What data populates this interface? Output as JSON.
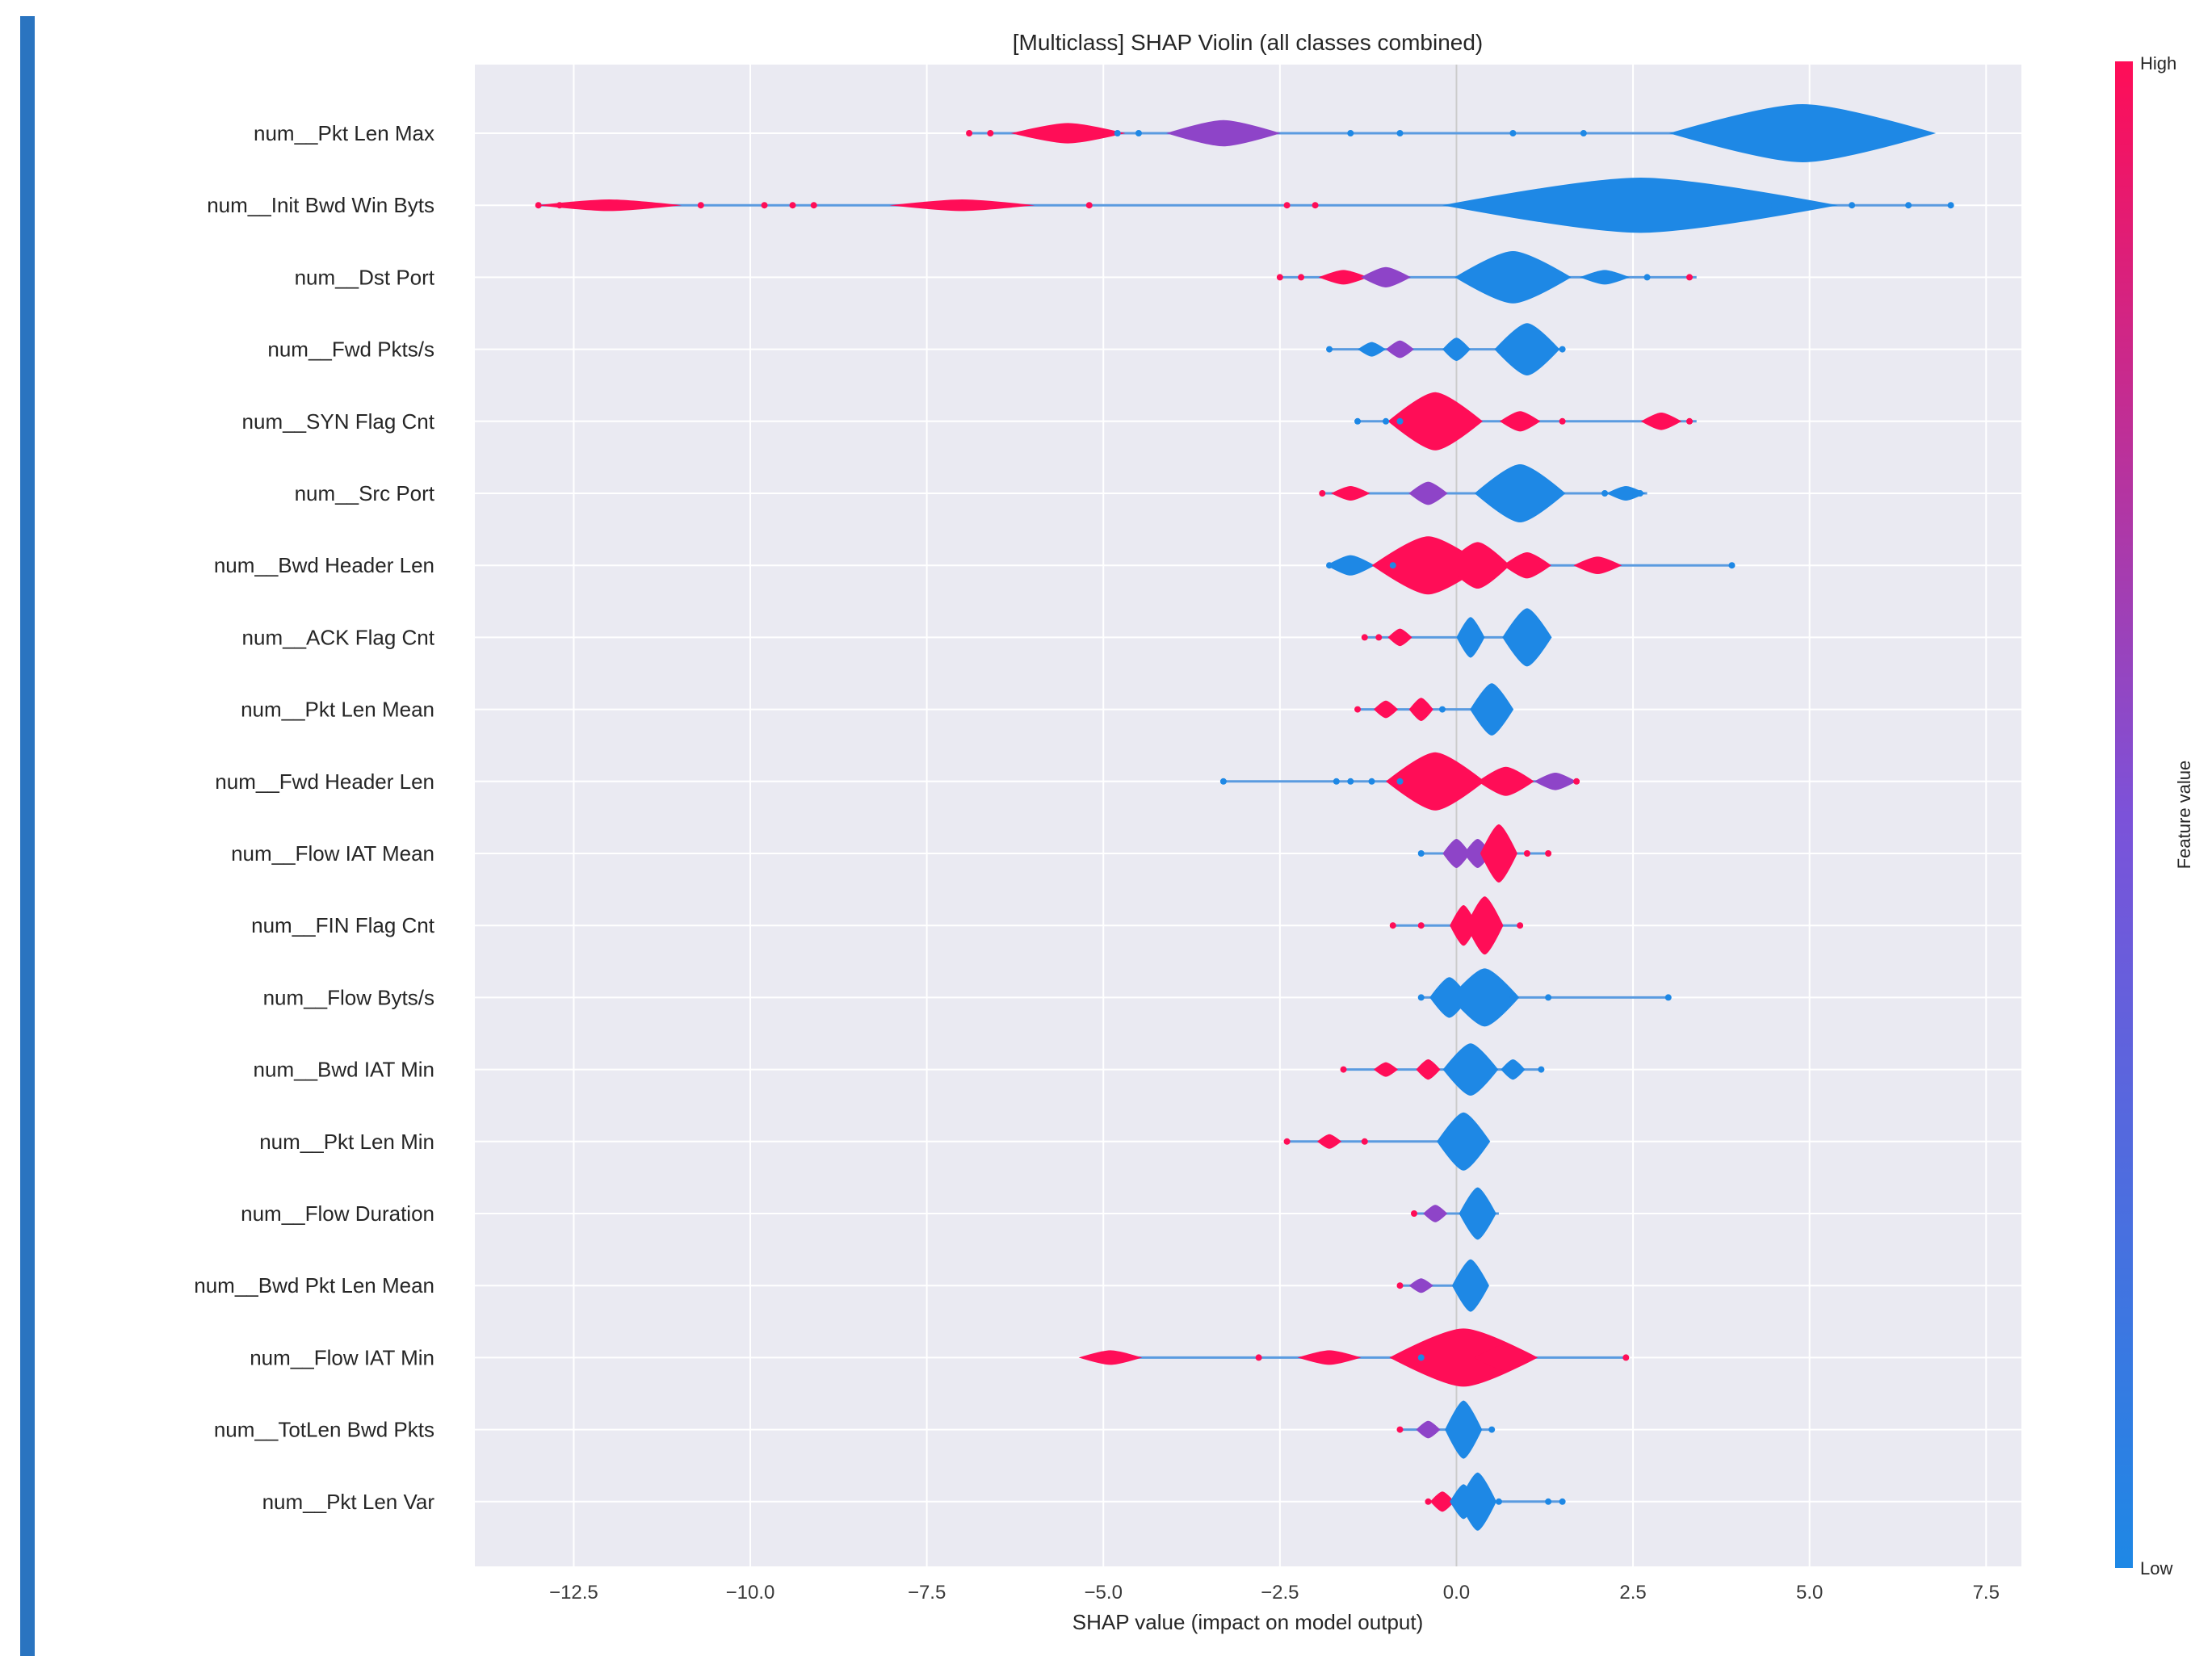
{
  "accent_color": "#2A74C0",
  "chart_data": {
    "type": "violin",
    "title": "[Multiclass] SHAP Violin (all classes combined)",
    "xlabel": "SHAP value (impact on model output)",
    "ylabel": "",
    "xlim": [
      -13.9,
      8.0
    ],
    "xticks": [
      -12.5,
      -10.0,
      -7.5,
      -5.0,
      -2.5,
      0.0,
      2.5,
      5.0,
      7.5
    ],
    "xtick_labels": [
      "−12.5",
      "−10.0",
      "−7.5",
      "−5.0",
      "−2.5",
      "0.0",
      "2.5",
      "5.0",
      "7.5"
    ],
    "colorbar": {
      "label": "Feature value",
      "high": "High",
      "low": "Low",
      "low_color": "#1E88E5",
      "high_color": "#FF0D57"
    },
    "features": [
      {
        "name": "num__Pkt Len Max",
        "min": -6.9,
        "max": 6.6,
        "bodies": [
          [
            -5.5,
            0.35,
            "high"
          ],
          [
            -3.3,
            0.45,
            "mid"
          ],
          [
            4.9,
            1.0,
            "low"
          ]
        ],
        "dots": [
          [
            -6.9,
            "high"
          ],
          [
            -6.6,
            "high"
          ],
          [
            -4.8,
            "low"
          ],
          [
            -4.5,
            "low"
          ],
          [
            -1.5,
            "low"
          ],
          [
            -0.8,
            "low"
          ],
          [
            0.8,
            "low"
          ],
          [
            1.8,
            "low"
          ]
        ]
      },
      {
        "name": "num__Init Bwd Win Byts",
        "min": -13.0,
        "max": 7.0,
        "bodies": [
          [
            -12.0,
            0.2,
            "high"
          ],
          [
            -7.0,
            0.2,
            "high"
          ],
          [
            2.6,
            0.95,
            "low"
          ]
        ],
        "dots": [
          [
            -13.0,
            "high"
          ],
          [
            -12.7,
            "high"
          ],
          [
            -10.7,
            "high"
          ],
          [
            -9.8,
            "high"
          ],
          [
            -9.4,
            "high"
          ],
          [
            -9.1,
            "high"
          ],
          [
            -5.2,
            "high"
          ],
          [
            -2.4,
            "high"
          ],
          [
            -2.0,
            "high"
          ],
          [
            4.5,
            "low"
          ],
          [
            5.6,
            "low"
          ],
          [
            6.4,
            "low"
          ],
          [
            7.0,
            "low"
          ]
        ]
      },
      {
        "name": "num__Dst Port",
        "min": -2.5,
        "max": 3.4,
        "bodies": [
          [
            -1.6,
            0.25,
            "high"
          ],
          [
            -1.0,
            0.35,
            "mid"
          ],
          [
            0.8,
            0.9,
            "low"
          ],
          [
            2.1,
            0.25,
            "low"
          ]
        ],
        "dots": [
          [
            -2.5,
            "high"
          ],
          [
            -2.2,
            "high"
          ],
          [
            2.7,
            "low"
          ],
          [
            3.3,
            "high"
          ]
        ]
      },
      {
        "name": "num__Fwd Pkts/s",
        "min": -1.8,
        "max": 1.5,
        "bodies": [
          [
            -1.2,
            0.25,
            "low"
          ],
          [
            -0.8,
            0.3,
            "mid"
          ],
          [
            0.0,
            0.4,
            "low"
          ],
          [
            1.0,
            0.9,
            "low"
          ]
        ],
        "dots": [
          [
            -1.8,
            "low"
          ],
          [
            1.5,
            "low"
          ]
        ]
      },
      {
        "name": "num__SYN Flag Cnt",
        "min": -1.4,
        "max": 3.4,
        "bodies": [
          [
            -0.3,
            1.0,
            "high"
          ],
          [
            0.9,
            0.35,
            "high"
          ],
          [
            2.9,
            0.3,
            "high"
          ]
        ],
        "dots": [
          [
            -1.4,
            "low"
          ],
          [
            -1.0,
            "low"
          ],
          [
            -0.8,
            "low"
          ],
          [
            1.5,
            "high"
          ],
          [
            3.3,
            "high"
          ]
        ]
      },
      {
        "name": "num__Src Port",
        "min": -1.9,
        "max": 2.7,
        "bodies": [
          [
            -1.5,
            0.25,
            "high"
          ],
          [
            -0.4,
            0.4,
            "mid"
          ],
          [
            0.9,
            1.0,
            "low"
          ],
          [
            2.4,
            0.25,
            "low"
          ]
        ],
        "dots": [
          [
            -1.9,
            "high"
          ],
          [
            2.1,
            "low"
          ],
          [
            2.6,
            "low"
          ]
        ]
      },
      {
        "name": "num__Bwd Header Len",
        "min": -1.8,
        "max": 3.9,
        "bodies": [
          [
            -1.5,
            0.35,
            "low"
          ],
          [
            -0.4,
            1.0,
            "high"
          ],
          [
            0.3,
            0.8,
            "high"
          ],
          [
            1.0,
            0.45,
            "high"
          ],
          [
            2.0,
            0.3,
            "high"
          ]
        ],
        "dots": [
          [
            -1.8,
            "low"
          ],
          [
            -0.9,
            "low"
          ],
          [
            3.9,
            "low"
          ]
        ]
      },
      {
        "name": "num__ACK Flag Cnt",
        "min": -1.3,
        "max": 1.2,
        "bodies": [
          [
            -0.8,
            0.3,
            "high"
          ],
          [
            0.2,
            0.7,
            "low"
          ],
          [
            1.0,
            1.0,
            "low"
          ]
        ],
        "dots": [
          [
            -1.3,
            "high"
          ],
          [
            -1.1,
            "high"
          ]
        ]
      },
      {
        "name": "num__Pkt Len Mean",
        "min": -1.4,
        "max": 0.8,
        "bodies": [
          [
            -1.0,
            0.3,
            "high"
          ],
          [
            -0.5,
            0.4,
            "high"
          ],
          [
            0.5,
            0.9,
            "low"
          ]
        ],
        "dots": [
          [
            -1.4,
            "high"
          ],
          [
            -0.2,
            "low"
          ]
        ]
      },
      {
        "name": "num__Fwd Header Len",
        "min": -3.3,
        "max": 1.7,
        "bodies": [
          [
            -0.3,
            1.0,
            "high"
          ],
          [
            0.7,
            0.5,
            "high"
          ],
          [
            1.4,
            0.3,
            "mid"
          ]
        ],
        "dots": [
          [
            -3.3,
            "low"
          ],
          [
            -1.7,
            "low"
          ],
          [
            -1.5,
            "low"
          ],
          [
            -1.2,
            "low"
          ],
          [
            -0.8,
            "low"
          ],
          [
            1.7,
            "high"
          ]
        ]
      },
      {
        "name": "num__Flow IAT Mean",
        "min": -0.5,
        "max": 1.3,
        "bodies": [
          [
            0.0,
            0.5,
            "mid"
          ],
          [
            0.3,
            0.5,
            "mid"
          ],
          [
            0.6,
            1.0,
            "high"
          ]
        ],
        "dots": [
          [
            -0.5,
            "low"
          ],
          [
            1.0,
            "high"
          ],
          [
            1.3,
            "high"
          ]
        ]
      },
      {
        "name": "num__FIN Flag Cnt",
        "min": -0.9,
        "max": 0.9,
        "bodies": [
          [
            0.1,
            0.7,
            "high"
          ],
          [
            0.4,
            1.0,
            "high"
          ]
        ],
        "dots": [
          [
            -0.9,
            "high"
          ],
          [
            -0.5,
            "high"
          ],
          [
            0.9,
            "high"
          ]
        ]
      },
      {
        "name": "num__Flow Byts/s",
        "min": -0.5,
        "max": 3.0,
        "bodies": [
          [
            -0.1,
            0.7,
            "low"
          ],
          [
            0.4,
            1.0,
            "low"
          ]
        ],
        "dots": [
          [
            -0.5,
            "low"
          ],
          [
            0.8,
            "low"
          ],
          [
            1.3,
            "low"
          ],
          [
            3.0,
            "low"
          ]
        ]
      },
      {
        "name": "num__Bwd IAT Min",
        "min": -1.6,
        "max": 1.2,
        "bodies": [
          [
            -1.0,
            0.25,
            "high"
          ],
          [
            -0.4,
            0.35,
            "high"
          ],
          [
            0.2,
            0.9,
            "low"
          ],
          [
            0.8,
            0.35,
            "low"
          ]
        ],
        "dots": [
          [
            -1.6,
            "high"
          ],
          [
            1.2,
            "low"
          ]
        ]
      },
      {
        "name": "num__Pkt Len Min",
        "min": -2.4,
        "max": 0.3,
        "bodies": [
          [
            -1.8,
            0.25,
            "high"
          ],
          [
            0.1,
            1.0,
            "low"
          ]
        ],
        "dots": [
          [
            -2.4,
            "high"
          ],
          [
            -1.3,
            "high"
          ]
        ]
      },
      {
        "name": "num__Flow Duration",
        "min": -0.6,
        "max": 0.6,
        "bodies": [
          [
            -0.3,
            0.3,
            "mid"
          ],
          [
            0.3,
            0.9,
            "low"
          ]
        ],
        "dots": [
          [
            -0.6,
            "high"
          ]
        ]
      },
      {
        "name": "num__Bwd Pkt Len Mean",
        "min": -0.8,
        "max": 0.3,
        "bodies": [
          [
            -0.5,
            0.25,
            "mid"
          ],
          [
            0.2,
            0.9,
            "low"
          ]
        ],
        "dots": [
          [
            -0.8,
            "high"
          ]
        ]
      },
      {
        "name": "num__Flow IAT Min",
        "min": -5.1,
        "max": 2.4,
        "bodies": [
          [
            -4.9,
            0.25,
            "high"
          ],
          [
            -1.8,
            0.25,
            "high"
          ],
          [
            0.1,
            1.0,
            "high"
          ],
          [
            0.7,
            0.45,
            "high"
          ]
        ],
        "dots": [
          [
            -2.8,
            "high"
          ],
          [
            -0.5,
            "low"
          ],
          [
            1.0,
            "high"
          ],
          [
            2.4,
            "high"
          ]
        ]
      },
      {
        "name": "num__TotLen Bwd Pkts",
        "min": -0.8,
        "max": 0.5,
        "bodies": [
          [
            -0.4,
            0.3,
            "mid"
          ],
          [
            0.1,
            1.0,
            "low"
          ]
        ],
        "dots": [
          [
            -0.8,
            "high"
          ],
          [
            0.5,
            "low"
          ]
        ]
      },
      {
        "name": "num__Pkt Len Var",
        "min": -0.4,
        "max": 1.5,
        "bodies": [
          [
            -0.2,
            0.35,
            "high"
          ],
          [
            0.1,
            0.6,
            "low"
          ],
          [
            0.3,
            1.0,
            "low"
          ]
        ],
        "dots": [
          [
            -0.4,
            "high"
          ],
          [
            0.6,
            "low"
          ],
          [
            1.3,
            "low"
          ],
          [
            1.5,
            "low"
          ]
        ]
      }
    ]
  }
}
